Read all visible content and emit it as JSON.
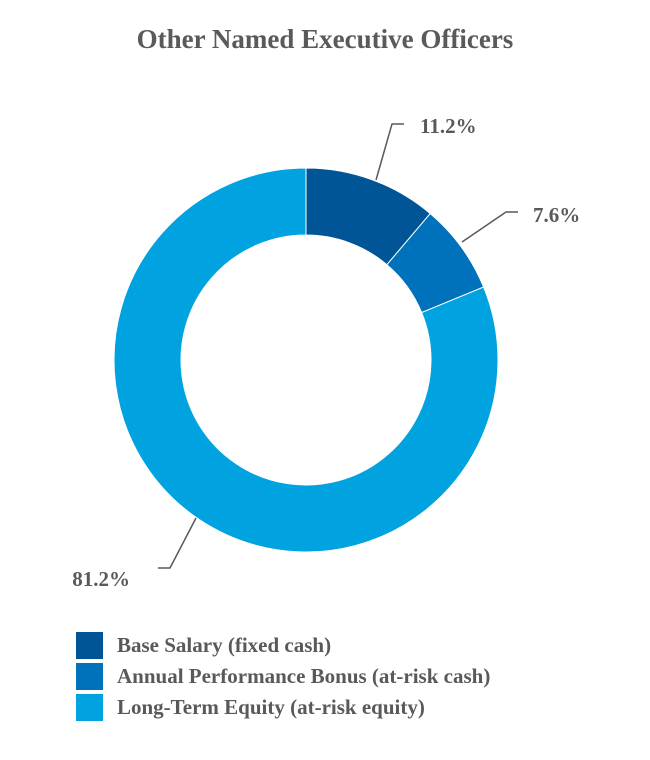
{
  "chart_data": {
    "type": "pie",
    "title": "Other Named Executive Officers",
    "donut": true,
    "legend_position": "bottom",
    "series": [
      {
        "name": "Base Salary (fixed cash)",
        "value": 11.2,
        "label": "11.2%",
        "color": "#005596"
      },
      {
        "name": "Annual Performance Bonus (at-risk cash)",
        "value": 7.6,
        "label": "7.6%",
        "color": "#0071bb"
      },
      {
        "name": "Long-Term Equity (at-risk equity)",
        "value": 81.2,
        "label": "81.2%",
        "color": "#00a3df"
      }
    ]
  }
}
